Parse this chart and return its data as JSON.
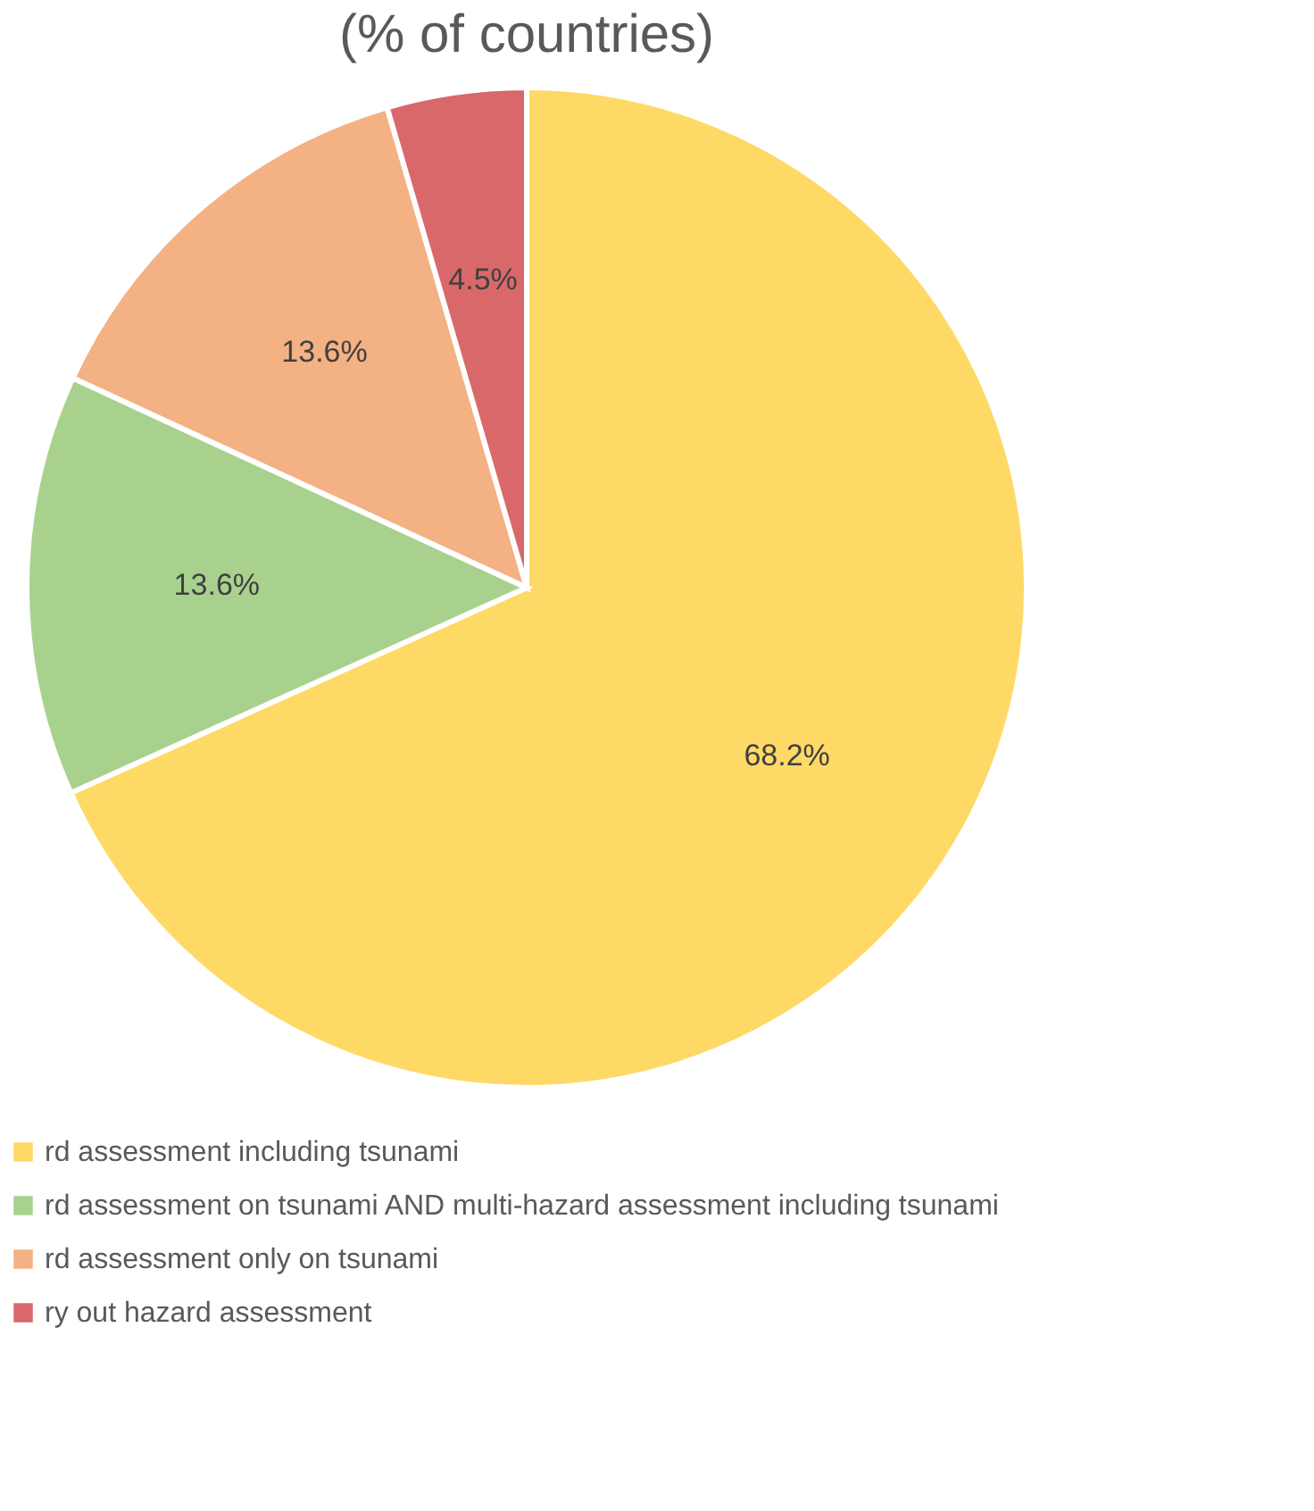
{
  "chart_data": {
    "type": "pie",
    "title": "(% of countries)",
    "categories": [
      "rd assessment including tsunami",
      "rd assessment on tsunami AND multi-hazard assessment including tsunami",
      "rd assessment only on tsunami",
      "ry out hazard assessment"
    ],
    "values": [
      68.2,
      13.6,
      13.6,
      4.5
    ],
    "value_labels": [
      "68.2%",
      "13.6%",
      "13.6%",
      "4.5%"
    ],
    "colors": [
      "#ffd966",
      "#a9d18e",
      "#f4b183",
      "#d9686a"
    ],
    "legend": "bottom"
  }
}
